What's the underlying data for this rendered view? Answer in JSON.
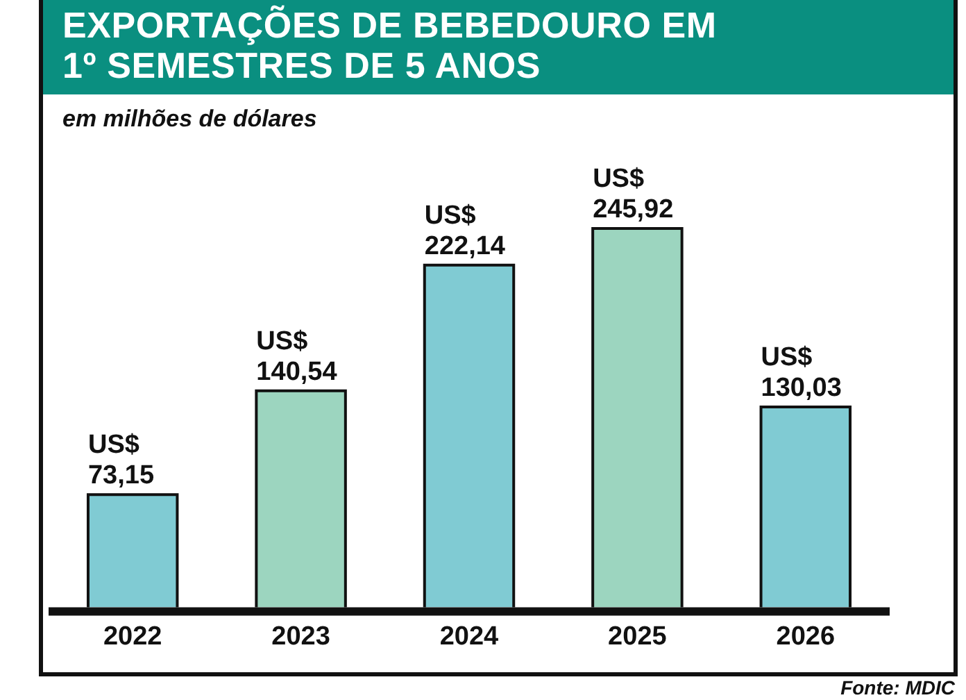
{
  "chart_data": {
    "type": "bar",
    "title": "EXPORTAÇÕES DE BEBEDOURO EM\n1º SEMESTRES DE 5 ANOS",
    "subtitle": "em milhões de dólares",
    "categories": [
      "2022",
      "2023",
      "2024",
      "2025",
      "2026"
    ],
    "values": [
      73.15,
      140.54,
      222.14,
      245.92,
      130.03
    ],
    "colors": [
      "#80cbd3",
      "#9cd5bf",
      "#80cbd3",
      "#9cd5bf",
      "#80cbd3"
    ],
    "value_labels": [
      "US$ 73,15",
      "US$ 140,54",
      "US$ 222,14",
      "US$ 245,92",
      "US$ 130,03"
    ],
    "annotations": [
      "Fonte: MDIC"
    ]
  }
}
